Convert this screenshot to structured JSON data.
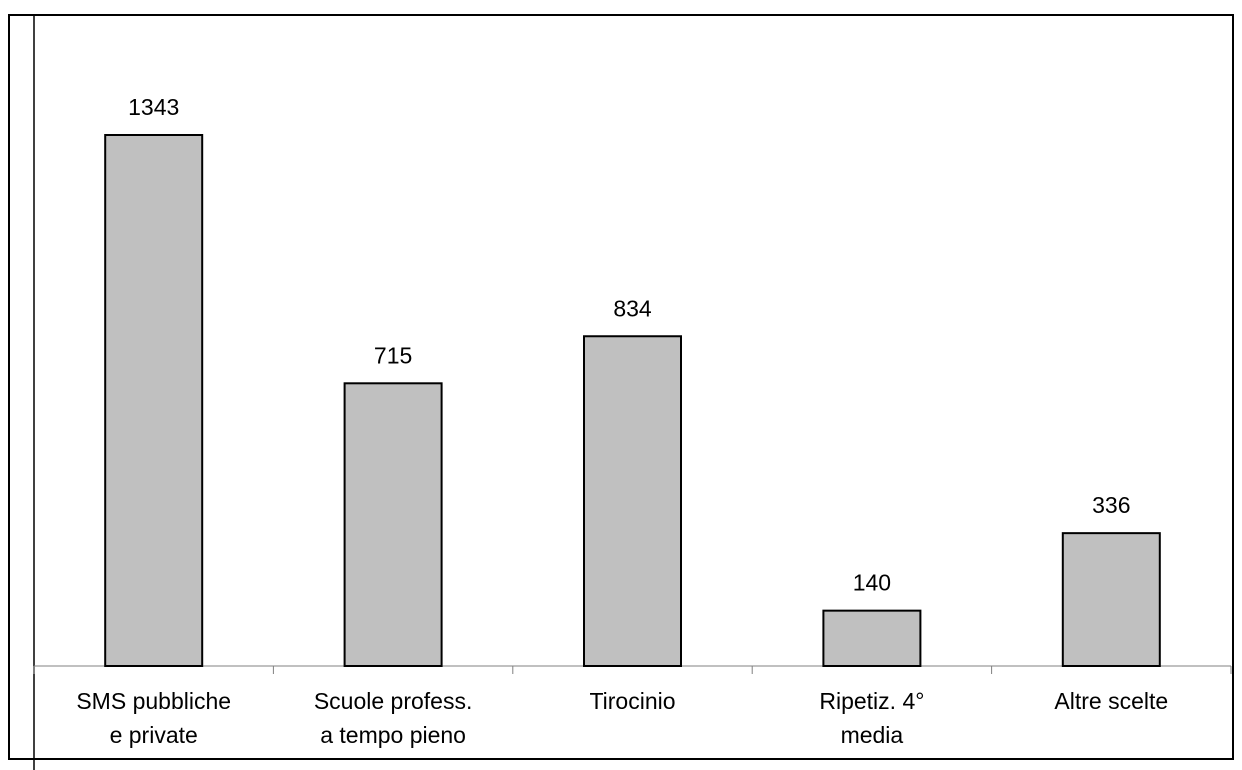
{
  "chart_data": {
    "type": "bar",
    "title": "",
    "xlabel": "",
    "ylabel": "",
    "categories": [
      [
        "SMS pubbliche",
        "e private"
      ],
      [
        "Scuole profess.",
        "a tempo pieno"
      ],
      [
        "Tirocinio"
      ],
      [
        "Ripetiz. 4°",
        "media"
      ],
      [
        "Altre scelte"
      ]
    ],
    "values": [
      1343,
      715,
      834,
      140,
      336
    ],
    "data_labels": [
      "1343",
      "715",
      "834",
      "140",
      "336"
    ],
    "ylim": [
      0,
      1343
    ],
    "grid": false,
    "legend": "none",
    "bar_color": "#c0c0c0",
    "border_color": "#000000"
  }
}
